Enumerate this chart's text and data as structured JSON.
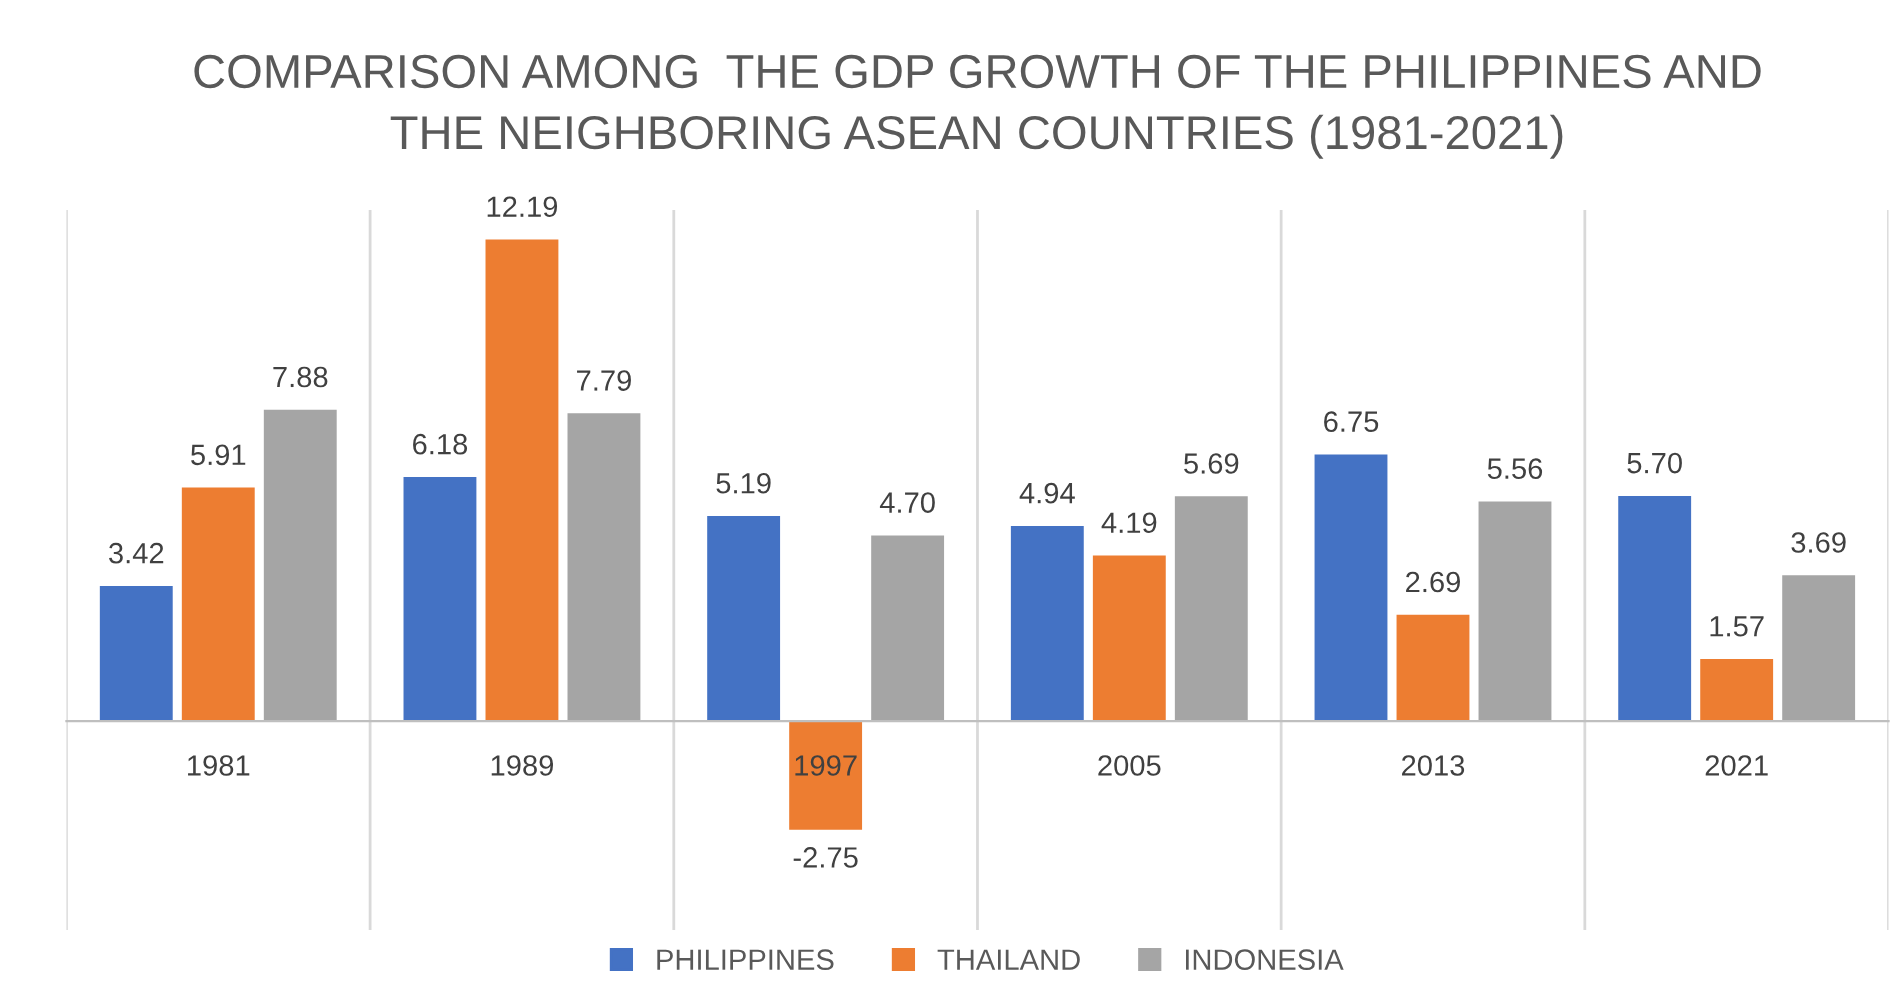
{
  "chart_data": {
    "type": "bar",
    "title": "COMPARISON AMONG  THE GDP GROWTH OF THE PHILIPPINES AND\nTHE NEIGHBORING ASEAN COUNTRIES (1981-2021)",
    "categories": [
      "1981",
      "1989",
      "1997",
      "2005",
      "2013",
      "2021"
    ],
    "series": [
      {
        "name": "PHILIPPINES",
        "color": "#4472c4",
        "values": [
          3.42,
          6.18,
          5.19,
          4.94,
          6.75,
          5.7
        ],
        "value_labels": [
          "3.42",
          "6.18",
          "5.19",
          "4.94",
          "6.75",
          "5.70"
        ]
      },
      {
        "name": "THAILAND",
        "color": "#ed7d31",
        "values": [
          5.91,
          12.19,
          -2.75,
          4.19,
          2.69,
          1.57
        ],
        "value_labels": [
          "5.91",
          "12.19",
          "-2.75",
          "4.19",
          "2.69",
          "1.57"
        ]
      },
      {
        "name": "INDONESIA",
        "color": "#a5a5a5",
        "values": [
          7.88,
          7.79,
          4.7,
          5.69,
          5.56,
          3.69
        ],
        "value_labels": [
          "7.88",
          "7.79",
          "4.70",
          "5.69",
          "5.56",
          "3.69"
        ]
      }
    ],
    "grid": "x",
    "legend": "bottom"
  }
}
